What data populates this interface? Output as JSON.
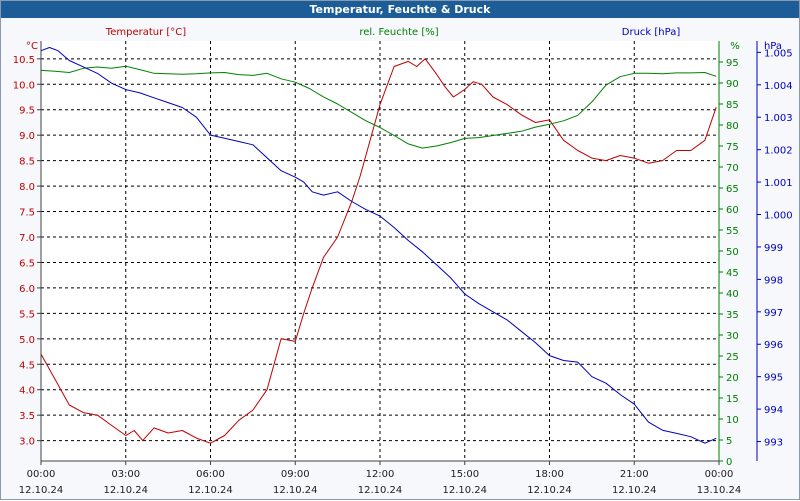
{
  "window": {
    "title": "Temperatur, Feuchte & Druck"
  },
  "chart_data": {
    "type": "line",
    "title": "Temperatur, Feuchte & Druck",
    "colors": {
      "temperature": "#c00000",
      "humidity": "#008000",
      "pressure": "#0000c0",
      "plot_bg": "#ffffff",
      "axis_text": "#202020"
    },
    "x_axis": {
      "ticks": [
        {
          "time": "00:00",
          "date": "12.10.24",
          "hour": 0
        },
        {
          "time": "03:00",
          "date": "12.10.24",
          "hour": 3
        },
        {
          "time": "06:00",
          "date": "12.10.24",
          "hour": 6
        },
        {
          "time": "09:00",
          "date": "12.10.24",
          "hour": 9
        },
        {
          "time": "12:00",
          "date": "12.10.24",
          "hour": 12
        },
        {
          "time": "15:00",
          "date": "12.10.24",
          "hour": 15
        },
        {
          "time": "18:00",
          "date": "12.10.24",
          "hour": 18
        },
        {
          "time": "21:00",
          "date": "12.10.24",
          "hour": 21
        },
        {
          "time": "00:00",
          "date": "13.10.24",
          "hour": 24
        }
      ],
      "range": [
        0,
        24
      ]
    },
    "axes": {
      "temperature": {
        "label": "Temperatur [°C]",
        "unit": "°C",
        "range": [
          2.6,
          10.85
        ],
        "ticks": [
          "3.0",
          "3.5",
          "4.0",
          "4.5",
          "5.0",
          "5.5",
          "6.0",
          "6.5",
          "7.0",
          "7.5",
          "8.0",
          "8.5",
          "9.0",
          "9.5",
          "10.0",
          "10.5"
        ]
      },
      "humidity": {
        "label": "rel. Feuchte [%]",
        "unit": "%",
        "range": [
          0,
          100
        ],
        "ticks": [
          "0",
          "5",
          "10",
          "15",
          "20",
          "25",
          "30",
          "35",
          "40",
          "45",
          "50",
          "55",
          "60",
          "65",
          "70",
          "75",
          "80",
          "85",
          "90",
          "95"
        ]
      },
      "pressure": {
        "label": "Druck [hPa]",
        "unit": "hPa",
        "range": [
          992.4,
          1005.35
        ],
        "ticks": [
          "993",
          "994",
          "995",
          "996",
          "997",
          "998",
          "999",
          "1.000",
          "1.001",
          "1.002",
          "1.003",
          "1.004",
          "1.005"
        ]
      }
    },
    "series": [
      {
        "name": "Temperatur",
        "axis": "temperature",
        "color": "#c00000",
        "x": [
          0,
          0.3,
          0.6,
          1,
          1.5,
          2,
          2.5,
          3,
          3.3,
          3.6,
          4,
          4.5,
          5,
          5.5,
          6,
          6.5,
          7,
          7.5,
          8,
          8.5,
          9,
          9.3,
          9.6,
          10,
          10.5,
          11,
          11.3,
          11.6,
          12,
          12.5,
          13,
          13.3,
          13.6,
          14,
          14.3,
          14.6,
          15,
          15.3,
          15.6,
          16,
          16.5,
          17,
          17.5,
          18,
          18.5,
          19,
          19.5,
          20,
          20.5,
          21,
          21.5,
          22,
          22.5,
          23,
          23.5,
          23.9
        ],
        "values": [
          4.7,
          4.4,
          4.1,
          3.7,
          3.55,
          3.5,
          3.3,
          3.1,
          3.2,
          3.0,
          3.25,
          3.15,
          3.2,
          3.05,
          2.95,
          3.1,
          3.4,
          3.6,
          4.0,
          5.0,
          4.95,
          5.5,
          6.0,
          6.6,
          7.0,
          7.7,
          8.2,
          8.8,
          9.6,
          10.35,
          10.45,
          10.35,
          10.5,
          10.2,
          9.95,
          9.75,
          9.9,
          10.05,
          10.0,
          9.75,
          9.6,
          9.4,
          9.25,
          9.3,
          8.9,
          8.7,
          8.55,
          8.5,
          8.6,
          8.55,
          8.45,
          8.5,
          8.7,
          8.7,
          8.9,
          9.55
        ]
      },
      {
        "name": "rel. Feuchte",
        "axis": "humidity",
        "color": "#008000",
        "x": [
          0,
          0.5,
          1,
          1.5,
          2,
          2.5,
          3,
          3.5,
          4,
          4.5,
          5,
          5.5,
          6,
          6.5,
          7,
          7.5,
          8,
          8.5,
          9,
          9.5,
          10,
          10.5,
          11,
          11.5,
          12,
          12.5,
          13,
          13.5,
          14,
          14.5,
          15,
          15.5,
          16,
          16.5,
          17,
          17.5,
          18,
          18.5,
          19,
          19.5,
          20,
          20.5,
          21,
          21.5,
          22,
          22.5,
          23,
          23.5,
          23.9
        ],
        "values": [
          93,
          92.8,
          92.5,
          93.5,
          93.8,
          93.5,
          94,
          93.2,
          92.3,
          92.2,
          92.1,
          92.2,
          92.4,
          92.5,
          92,
          91.8,
          92.3,
          91,
          90.2,
          88.7,
          86.7,
          85,
          83,
          81,
          79.4,
          77.5,
          75.5,
          74.5,
          75,
          75.8,
          76.8,
          77,
          77.5,
          78,
          78.5,
          79.5,
          80.2,
          81,
          82.3,
          85.5,
          89.5,
          91.5,
          92.3,
          92.3,
          92.2,
          92.4,
          92.4,
          92.5,
          91.6
        ]
      },
      {
        "name": "Druck",
        "axis": "pressure",
        "color": "#0000c0",
        "x": [
          0,
          0.3,
          0.6,
          1,
          1.5,
          2,
          2.5,
          3,
          3.5,
          4,
          4.5,
          5,
          5.5,
          6,
          6.5,
          7,
          7.5,
          8,
          8.5,
          9,
          9.3,
          9.6,
          10,
          10.5,
          11,
          11.5,
          12,
          12.5,
          13,
          13.5,
          14,
          14.5,
          15,
          15.5,
          16,
          16.5,
          17,
          17.5,
          18,
          18.5,
          19,
          19.5,
          20,
          20.5,
          21,
          21.5,
          22,
          22.5,
          23,
          23.5,
          23.9
        ],
        "values": [
          1005.05,
          1005.15,
          1005.05,
          1004.75,
          1004.55,
          1004.35,
          1004.05,
          1003.85,
          1003.75,
          1003.6,
          1003.45,
          1003.3,
          1003.0,
          1002.45,
          1002.35,
          1002.25,
          1002.15,
          1001.75,
          1001.35,
          1001.15,
          1001.0,
          1000.7,
          1000.6,
          1000.7,
          1000.4,
          1000.15,
          999.95,
          999.6,
          999.2,
          998.85,
          998.45,
          998.05,
          997.55,
          997.25,
          997.0,
          996.75,
          996.4,
          996.05,
          995.65,
          995.5,
          995.45,
          995.0,
          994.8,
          994.45,
          994.15,
          993.6,
          993.35,
          993.25,
          993.15,
          992.95,
          993.1
        ]
      }
    ]
  }
}
